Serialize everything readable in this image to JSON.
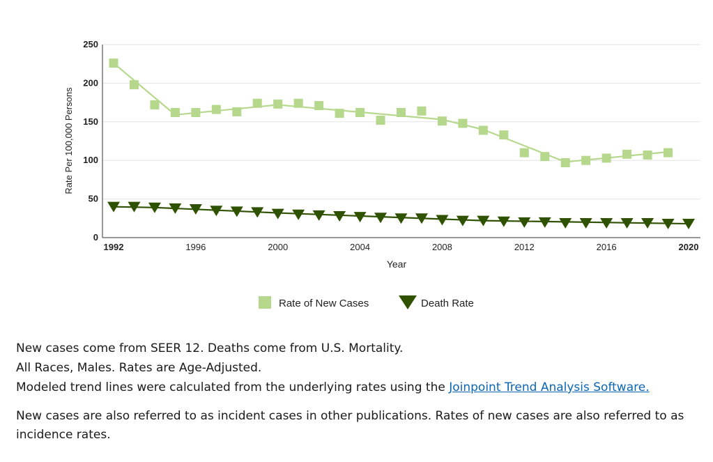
{
  "chart_data": {
    "type": "line",
    "xlabel": "Year",
    "ylabel": "Rate Per 100,000 Persons",
    "xlim": [
      1992,
      2020
    ],
    "ylim": [
      0,
      250
    ],
    "x_ticks": [
      "1992",
      "1996",
      "2000",
      "2004",
      "2008",
      "2012",
      "2016",
      "2020"
    ],
    "y_ticks": [
      "0",
      "50",
      "100",
      "150",
      "200",
      "250"
    ],
    "grid": "horizontal",
    "legend_position": "bottom",
    "series": [
      {
        "name": "Rate of New Cases",
        "marker": "square",
        "color": "#b5d88c",
        "observed": {
          "x": [
            1992,
            1993,
            1994,
            1995,
            1996,
            1997,
            1998,
            1999,
            2000,
            2001,
            2002,
            2003,
            2004,
            2005,
            2006,
            2007,
            2008,
            2009,
            2010,
            2011,
            2012,
            2013,
            2014,
            2015,
            2016,
            2017,
            2018,
            2019
          ],
          "y": [
            226,
            198,
            172,
            162,
            162,
            166,
            163,
            174,
            173,
            174,
            171,
            161,
            162,
            152,
            162,
            164,
            151,
            148,
            139,
            133,
            110,
            105,
            97,
            100,
            103,
            108,
            107,
            110
          ]
        },
        "trend": {
          "x": [
            1992,
            1995,
            2000,
            2008,
            2010,
            2014,
            2019
          ],
          "y": [
            226,
            159,
            172,
            153,
            140,
            98,
            111
          ]
        }
      },
      {
        "name": "Death Rate",
        "marker": "triangle-down",
        "color": "#2f5201",
        "observed": {
          "x": [
            1992,
            1993,
            1994,
            1995,
            1996,
            1997,
            1998,
            1999,
            2000,
            2001,
            2002,
            2003,
            2004,
            2005,
            2006,
            2007,
            2008,
            2009,
            2010,
            2011,
            2012,
            2013,
            2014,
            2015,
            2016,
            2017,
            2018,
            2019,
            2020
          ],
          "y": [
            40,
            40,
            39,
            38,
            37,
            35,
            34,
            33,
            31,
            30,
            29,
            28,
            27,
            26,
            25,
            25,
            23,
            22,
            22,
            21,
            20,
            20,
            19,
            19,
            19,
            19,
            19,
            18,
            18
          ]
        },
        "trend": {
          "x": [
            1992,
            1994,
            2000,
            2010,
            2020
          ],
          "y": [
            40,
            39,
            32,
            22,
            18
          ]
        }
      }
    ]
  },
  "notes": {
    "line1": "New cases come from SEER 12. Deaths come from U.S. Mortality.",
    "line2": "All Races, Males. Rates are Age-Adjusted.",
    "line3_prefix": "Modeled trend lines were calculated from the underlying rates using the ",
    "line3_link": "Joinpoint Trend Analysis Software.",
    "para2": "New cases are also referred to as incident cases in other publications. Rates of new cases are also referred to as incidence rates."
  }
}
